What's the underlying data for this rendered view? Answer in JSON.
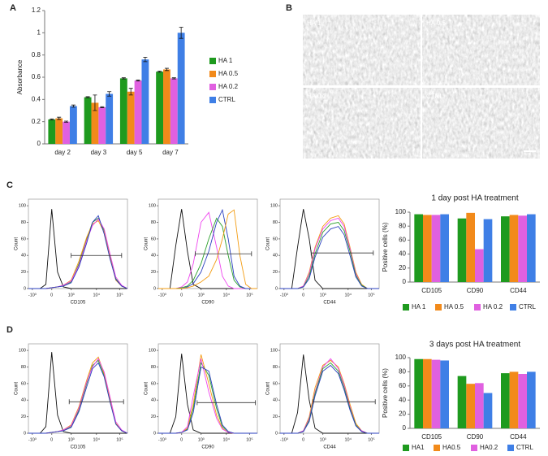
{
  "panels": {
    "a": "A",
    "b": "B",
    "c": "C",
    "d": "D"
  },
  "micrographs": [
    "HA 1",
    "HA 0.5",
    "HA 0.2",
    "CTRL"
  ],
  "chart_data": [
    {
      "type": "bar",
      "ylabel": "Absorbance",
      "categories": [
        "day 2",
        "day 3",
        "day 5",
        "day 7"
      ],
      "ylim": [
        0,
        1.2
      ],
      "yticks": [
        0,
        0.2,
        0.4,
        0.6,
        0.8,
        1,
        1.2
      ],
      "legend": "right",
      "series": [
        {
          "name": "HA 1",
          "color": "#1e9a1e",
          "values": [
            0.22,
            0.42,
            0.59,
            0.65
          ],
          "errors": [
            0.005,
            0.005,
            0.005,
            0.005
          ]
        },
        {
          "name": "HA 0.5",
          "color": "#f28a1a",
          "values": [
            0.23,
            0.37,
            0.47,
            0.67
          ],
          "errors": [
            0.01,
            0.07,
            0.03,
            0.01
          ]
        },
        {
          "name": "HA 0.2",
          "color": "#e060e0",
          "values": [
            0.2,
            0.33,
            0.57,
            0.59
          ],
          "errors": [
            0.005,
            0.005,
            0.005,
            0.005
          ]
        },
        {
          "name": "CTRL",
          "color": "#3f7fe6",
          "values": [
            0.34,
            0.45,
            0.76,
            1
          ],
          "errors": [
            0.01,
            0.02,
            0.02,
            0.05
          ]
        }
      ]
    },
    {
      "type": "line",
      "ylabel": "Count",
      "xlabel": "CD105",
      "xlim": [
        -1.2,
        3.9
      ],
      "ylim": [
        0,
        108
      ],
      "xticks": [
        {
          "value": -1,
          "label": "-10³"
        },
        0,
        {
          "value": 1,
          "label": "10³"
        },
        {
          "value": 2.3,
          "label": "10⁴"
        },
        {
          "value": 3.5,
          "label": "10⁵"
        }
      ],
      "yticks": [
        0,
        20,
        40,
        60,
        80,
        100
      ],
      "gate": {
        "x": [
          1,
          3.6
        ],
        "y": 40
      },
      "x": [
        -1.2,
        -0.6,
        -0.3,
        0,
        0.3,
        0.6,
        1,
        1.4,
        1.8,
        2.1,
        2.4,
        2.7,
        3,
        3.3,
        3.6,
        3.9
      ],
      "series": [
        {
          "color": "#111111",
          "values": [
            0,
            0,
            5,
            96,
            20,
            2,
            0,
            0,
            0,
            0,
            0,
            0,
            0,
            0,
            0,
            0
          ]
        },
        {
          "color": "#2ca02c",
          "values": [
            0,
            0,
            0,
            1,
            2,
            3,
            8,
            30,
            60,
            80,
            85,
            70,
            40,
            12,
            3,
            0
          ]
        },
        {
          "color": "#f39c12",
          "values": [
            0,
            0,
            0,
            1,
            2,
            4,
            10,
            33,
            62,
            78,
            82,
            68,
            38,
            10,
            3,
            0
          ]
        },
        {
          "color": "#ee44ee",
          "values": [
            0,
            0,
            0,
            1,
            2,
            4,
            9,
            28,
            58,
            76,
            84,
            72,
            42,
            14,
            4,
            0
          ]
        },
        {
          "color": "#2a3fbf",
          "values": [
            0,
            0,
            0,
            1,
            2,
            3,
            7,
            26,
            55,
            80,
            88,
            66,
            36,
            11,
            3,
            0
          ]
        }
      ]
    },
    {
      "type": "line",
      "ylabel": "Count",
      "xlabel": "CD90",
      "xlim": [
        -1.2,
        3.9
      ],
      "ylim": [
        0,
        108
      ],
      "xticks": [
        {
          "value": -1,
          "label": "-10³"
        },
        0,
        {
          "value": 1,
          "label": "10³"
        },
        {
          "value": 2.3,
          "label": "10⁴"
        },
        {
          "value": 3.5,
          "label": "10⁵"
        }
      ],
      "yticks": [
        0,
        20,
        40,
        60,
        80,
        100
      ],
      "gate": {
        "x": [
          0.7,
          3.6
        ],
        "y": 42
      },
      "x": [
        -1.2,
        -0.6,
        -0.3,
        0,
        0.3,
        0.6,
        1,
        1.4,
        1.8,
        2.1,
        2.4,
        2.7,
        3,
        3.3,
        3.6,
        3.9
      ],
      "series": [
        {
          "color": "#111111",
          "values": [
            0,
            0,
            52,
            96,
            45,
            5,
            0,
            0,
            0,
            0,
            0,
            0,
            0,
            0,
            0,
            0
          ]
        },
        {
          "color": "#ee44ee",
          "values": [
            0,
            0,
            0,
            2,
            8,
            30,
            80,
            92,
            50,
            15,
            3,
            0,
            0,
            0,
            0,
            0
          ]
        },
        {
          "color": "#2ca02c",
          "values": [
            0,
            0,
            0,
            1,
            3,
            10,
            30,
            60,
            85,
            75,
            40,
            10,
            2,
            0,
            0,
            0
          ]
        },
        {
          "color": "#2a3fbf",
          "values": [
            0,
            0,
            0,
            0,
            2,
            6,
            20,
            45,
            80,
            95,
            60,
            15,
            3,
            0,
            0,
            0
          ]
        },
        {
          "color": "#f39c12",
          "values": [
            0,
            0,
            0,
            0,
            1,
            3,
            8,
            15,
            35,
            60,
            90,
            95,
            40,
            5,
            0,
            0
          ]
        }
      ]
    },
    {
      "type": "line",
      "ylabel": "Count",
      "xlabel": "CD44",
      "xlim": [
        -1.2,
        3.9
      ],
      "ylim": [
        0,
        108
      ],
      "xticks": [
        {
          "value": -1,
          "label": "-10³"
        },
        0,
        {
          "value": 1,
          "label": "10³"
        },
        {
          "value": 2.3,
          "label": "10⁴"
        },
        {
          "value": 3.5,
          "label": "10⁵"
        }
      ],
      "yticks": [
        0,
        20,
        40,
        60,
        80,
        100
      ],
      "gate": {
        "x": [
          0.4,
          3.6
        ],
        "y": 43
      },
      "x": [
        -1.2,
        -0.6,
        -0.3,
        0,
        0.3,
        0.6,
        1,
        1.4,
        1.8,
        2.1,
        2.4,
        2.7,
        3,
        3.3,
        3.6,
        3.9
      ],
      "series": [
        {
          "color": "#111111",
          "values": [
            0,
            0,
            50,
            96,
            60,
            10,
            0,
            0,
            0,
            0,
            0,
            0,
            0,
            0,
            0,
            0
          ]
        },
        {
          "color": "#f39c12",
          "values": [
            0,
            0,
            0,
            3,
            20,
            50,
            75,
            85,
            88,
            78,
            50,
            20,
            5,
            0,
            0,
            0
          ]
        },
        {
          "color": "#ee44ee",
          "values": [
            0,
            0,
            0,
            3,
            18,
            48,
            72,
            82,
            85,
            75,
            48,
            18,
            4,
            0,
            0,
            0
          ]
        },
        {
          "color": "#2ca02c",
          "values": [
            0,
            0,
            0,
            2,
            15,
            42,
            68,
            78,
            80,
            70,
            45,
            16,
            4,
            0,
            0,
            0
          ]
        },
        {
          "color": "#2a3fbf",
          "values": [
            0,
            0,
            0,
            2,
            12,
            38,
            62,
            72,
            75,
            65,
            40,
            14,
            3,
            0,
            0,
            0
          ]
        }
      ]
    },
    {
      "type": "bar",
      "title": "1 day post HA treatment",
      "ylabel": "Positive cells (%)",
      "categories": [
        "CD105",
        "CD90",
        "CD44"
      ],
      "ylim": [
        0,
        100
      ],
      "yticks": [
        0,
        20,
        40,
        60,
        80,
        100
      ],
      "legend": "bottom",
      "series": [
        {
          "name": "HA 1",
          "color": "#1e9a1e",
          "values": [
            97,
            91,
            94
          ]
        },
        {
          "name": "HA 0.5",
          "color": "#f28a1a",
          "values": [
            96,
            99,
            96
          ]
        },
        {
          "name": "HA 0.2",
          "color": "#e060e0",
          "values": [
            96,
            47,
            95
          ]
        },
        {
          "name": "CTRL",
          "color": "#3f7fe6",
          "values": [
            97,
            90,
            97
          ]
        }
      ]
    },
    {
      "type": "line",
      "ylabel": "Count",
      "xlabel": "CD105",
      "xlim": [
        -1.2,
        3.9
      ],
      "ylim": [
        0,
        108
      ],
      "xticks": [
        {
          "value": -1,
          "label": "-10³"
        },
        0,
        {
          "value": 1,
          "label": "10³"
        },
        {
          "value": 2.3,
          "label": "10⁴"
        },
        {
          "value": 3.5,
          "label": "10⁵"
        }
      ],
      "yticks": [
        0,
        20,
        40,
        60,
        80,
        100
      ],
      "gate": {
        "x": [
          0.9,
          3.7
        ],
        "y": 38
      },
      "x": [
        -1.2,
        -0.6,
        -0.3,
        0,
        0.3,
        0.6,
        1,
        1.4,
        1.8,
        2.1,
        2.4,
        2.7,
        3,
        3.3,
        3.6,
        3.9
      ],
      "series": [
        {
          "color": "#111111",
          "values": [
            0,
            0,
            8,
            98,
            22,
            2,
            0,
            0,
            0,
            0,
            0,
            0,
            0,
            0,
            0,
            0
          ]
        },
        {
          "color": "#2ca02c",
          "values": [
            0,
            0,
            0,
            1,
            2,
            3,
            8,
            28,
            60,
            82,
            88,
            70,
            40,
            12,
            3,
            0
          ]
        },
        {
          "color": "#f39c12",
          "values": [
            0,
            0,
            0,
            1,
            2,
            4,
            10,
            32,
            64,
            85,
            92,
            72,
            42,
            12,
            3,
            0
          ]
        },
        {
          "color": "#ee44ee",
          "values": [
            0,
            0,
            0,
            1,
            2,
            4,
            9,
            30,
            62,
            80,
            90,
            74,
            44,
            14,
            4,
            0
          ]
        },
        {
          "color": "#2a3fbf",
          "values": [
            0,
            0,
            0,
            1,
            2,
            3,
            7,
            26,
            56,
            78,
            85,
            68,
            38,
            11,
            3,
            0
          ]
        }
      ]
    },
    {
      "type": "line",
      "ylabel": "Count",
      "xlabel": "CD90",
      "xlim": [
        -1.2,
        3.9
      ],
      "ylim": [
        0,
        108
      ],
      "xticks": [
        {
          "value": -1,
          "label": "-10³"
        },
        0,
        {
          "value": 1,
          "label": "10³"
        },
        {
          "value": 2.3,
          "label": "10⁴"
        },
        {
          "value": 3.5,
          "label": "10⁵"
        }
      ],
      "yticks": [
        0,
        20,
        40,
        60,
        80,
        100
      ],
      "gate": {
        "x": [
          0.8,
          3.8
        ],
        "y": 37
      },
      "x": [
        -1.2,
        -0.6,
        -0.3,
        0,
        0.3,
        0.6,
        1,
        1.4,
        1.8,
        2.1,
        2.4,
        2.7,
        3,
        3.3,
        3.6,
        3.9
      ],
      "series": [
        {
          "color": "#111111",
          "values": [
            0,
            0,
            20,
            96,
            35,
            4,
            0,
            0,
            0,
            0,
            0,
            0,
            0,
            0,
            0,
            0
          ]
        },
        {
          "color": "#2ca02c",
          "values": [
            0,
            0,
            0,
            1,
            5,
            30,
            85,
            70,
            30,
            8,
            2,
            0,
            0,
            0,
            0,
            0
          ]
        },
        {
          "color": "#f39c12",
          "values": [
            0,
            0,
            0,
            1,
            6,
            35,
            95,
            60,
            22,
            6,
            1,
            0,
            0,
            0,
            0,
            0
          ]
        },
        {
          "color": "#ee44ee",
          "values": [
            0,
            0,
            0,
            1,
            8,
            45,
            90,
            50,
            18,
            5,
            1,
            0,
            0,
            0,
            0,
            0
          ]
        },
        {
          "color": "#2a3fbf",
          "values": [
            0,
            0,
            0,
            1,
            4,
            25,
            80,
            75,
            35,
            10,
            2,
            0,
            0,
            0,
            0,
            0
          ]
        }
      ]
    },
    {
      "type": "line",
      "ylabel": "Count",
      "xlabel": "CD44",
      "xlim": [
        -1.2,
        3.9
      ],
      "ylim": [
        0,
        108
      ],
      "xticks": [
        {
          "value": -1,
          "label": "-10³"
        },
        0,
        {
          "value": 1,
          "label": "10³"
        },
        {
          "value": 2.3,
          "label": "10⁴"
        },
        {
          "value": 3.5,
          "label": "10⁵"
        }
      ],
      "yticks": [
        0,
        20,
        40,
        60,
        80,
        100
      ],
      "gate": {
        "x": [
          0.5,
          3.7
        ],
        "y": 38
      },
      "x": [
        -1.2,
        -0.6,
        -0.3,
        0,
        0.3,
        0.6,
        1,
        1.4,
        1.8,
        2.1,
        2.4,
        2.7,
        3,
        3.3,
        3.6,
        3.9
      ],
      "series": [
        {
          "color": "#111111",
          "values": [
            0,
            0,
            25,
            95,
            40,
            6,
            0,
            0,
            0,
            0,
            0,
            0,
            0,
            0,
            0,
            0
          ]
        },
        {
          "color": "#f39c12",
          "values": [
            0,
            0,
            0,
            3,
            20,
            55,
            82,
            88,
            80,
            60,
            35,
            12,
            3,
            0,
            0,
            0
          ]
        },
        {
          "color": "#ee44ee",
          "values": [
            0,
            0,
            0,
            3,
            18,
            50,
            80,
            90,
            78,
            58,
            32,
            10,
            3,
            0,
            0,
            0
          ]
        },
        {
          "color": "#2ca02c",
          "values": [
            0,
            0,
            0,
            2,
            16,
            48,
            78,
            85,
            75,
            55,
            30,
            10,
            2,
            0,
            0,
            0
          ]
        },
        {
          "color": "#2a3fbf",
          "values": [
            0,
            0,
            0,
            2,
            14,
            45,
            75,
            82,
            72,
            52,
            28,
            9,
            2,
            0,
            0,
            0
          ]
        }
      ]
    },
    {
      "type": "bar",
      "title": "3 days post HA treatment",
      "ylabel": "Positive cells (%)",
      "categories": [
        "CD105",
        "CD90",
        "CD44"
      ],
      "ylim": [
        0,
        100
      ],
      "yticks": [
        0,
        20,
        40,
        60,
        80,
        100
      ],
      "legend": "bottom",
      "series": [
        {
          "name": "HA1",
          "color": "#1e9a1e",
          "values": [
            98,
            74,
            78
          ]
        },
        {
          "name": "HA0.5",
          "color": "#f28a1a",
          "values": [
            98,
            63,
            80
          ]
        },
        {
          "name": "HA0.2",
          "color": "#e060e0",
          "values": [
            97,
            64,
            77
          ]
        },
        {
          "name": "CTRL",
          "color": "#3f7fe6",
          "values": [
            96,
            50,
            80
          ]
        }
      ]
    }
  ]
}
